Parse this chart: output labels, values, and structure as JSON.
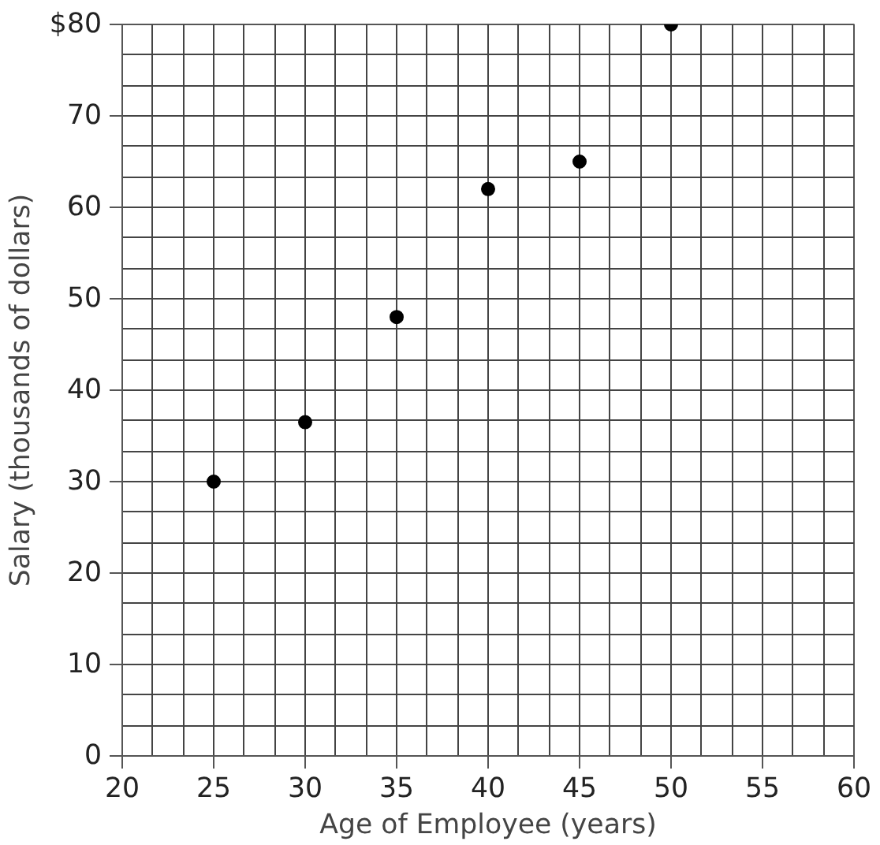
{
  "chart_data": {
    "type": "scatter",
    "xlabel": "Age of Employee (years)",
    "ylabel": "Salary (thousands of dollars)",
    "x": [
      25,
      30,
      35,
      40,
      45,
      50
    ],
    "series": [
      {
        "color": "#000000",
        "values": [
          30,
          36.5,
          48,
          62,
          65,
          80
        ]
      }
    ],
    "xlim": [
      20,
      60
    ],
    "xticks": [
      20,
      25,
      30,
      35,
      40,
      45,
      50,
      55,
      60
    ],
    "ylim": [
      0,
      80
    ],
    "yticks": [
      0,
      10,
      20,
      30,
      40,
      50,
      60,
      70,
      {
        "value": 80,
        "label": "$80"
      }
    ],
    "grid": true,
    "marker": "circle"
  }
}
